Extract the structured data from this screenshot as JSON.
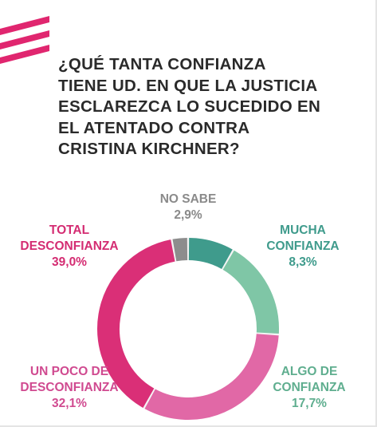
{
  "question": {
    "lines": [
      "¿QUÉ TANTA CONFIANZA",
      "TIENE UD. EN QUE LA JUSTICIA",
      "ESCLAREZCA LO SUCEDIDO EN",
      "EL ATENTADO CONTRA",
      "CRISTINA KIRCHNER?"
    ]
  },
  "colors": {
    "logo": "#e0266f",
    "title": "#2a2a2a",
    "ring_bg": "#f4f4f4"
  },
  "chart_data": {
    "type": "pie",
    "donut": true,
    "start": "top, clockwise",
    "slices": [
      {
        "label_lines": [
          "MUCHA",
          "CONFIANZA"
        ],
        "value": 8.3,
        "value_label": "8,3%",
        "color": "#3f9b8c",
        "label_color": "#3f9b8c"
      },
      {
        "label_lines": [
          "ALGO DE",
          "CONFIANZA"
        ],
        "value": 17.7,
        "value_label": "17,7%",
        "color": "#7fc6a6",
        "label_color": "#5fae8f"
      },
      {
        "label_lines": [
          "UN POCO DE",
          "DESCONFIANZA"
        ],
        "value": 32.1,
        "value_label": "32,1%",
        "color": "#e168a6",
        "label_color": "#d04a90"
      },
      {
        "label_lines": [
          "TOTAL",
          "DESCONFIANZA"
        ],
        "value": 39.0,
        "value_label": "39,0%",
        "color": "#da2f77",
        "label_color": "#d42c72"
      },
      {
        "label_lines": [
          "NO SABE"
        ],
        "value": 2.9,
        "value_label": "2,9%",
        "color": "#8d8d8d",
        "label_color": "#8a8a8a"
      }
    ]
  }
}
